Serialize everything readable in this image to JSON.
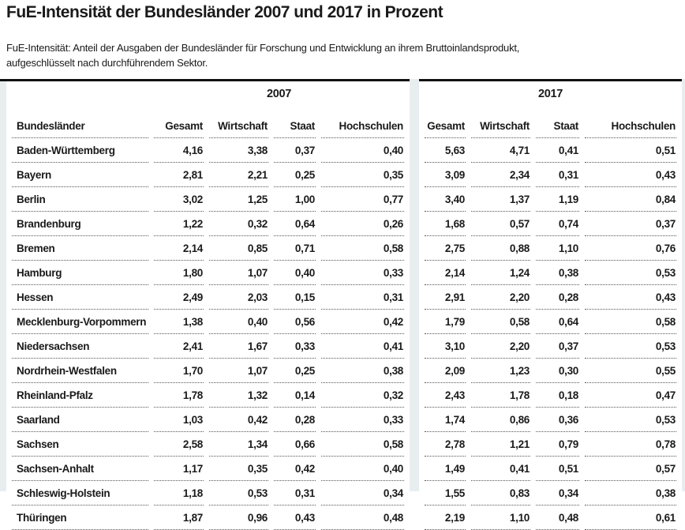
{
  "title": "FuE-Intensität der Bundesländer 2007 und 2017 in Prozent",
  "subtitle_lines": [
    "FuE-Intensität: Anteil der Ausgaben der Bundesländer für Forschung und Entwicklung an ihrem Bruttoinlandsprodukt,",
    "aufgeschlüsselt nach durchführendem Sektor."
  ],
  "table": {
    "row_header": "Bundesländer",
    "year_groups": [
      "2007",
      "2017"
    ],
    "columns": [
      "Gesamt",
      "Wirtschaft",
      "Staat",
      "Hochschulen"
    ],
    "rows": [
      {
        "name": "Baden-Württemberg",
        "y2007": [
          "4,16",
          "3,38",
          "0,37",
          "0,40"
        ],
        "y2017": [
          "5,63",
          "4,71",
          "0,41",
          "0,51"
        ]
      },
      {
        "name": "Bayern",
        "y2007": [
          "2,81",
          "2,21",
          "0,25",
          "0,35"
        ],
        "y2017": [
          "3,09",
          "2,34",
          "0,31",
          "0,43"
        ]
      },
      {
        "name": "Berlin",
        "y2007": [
          "3,02",
          "1,25",
          "1,00",
          "0,77"
        ],
        "y2017": [
          "3,40",
          "1,37",
          "1,19",
          "0,84"
        ]
      },
      {
        "name": "Brandenburg",
        "y2007": [
          "1,22",
          "0,32",
          "0,64",
          "0,26"
        ],
        "y2017": [
          "1,68",
          "0,57",
          "0,74",
          "0,37"
        ]
      },
      {
        "name": "Bremen",
        "y2007": [
          "2,14",
          "0,85",
          "0,71",
          "0,58"
        ],
        "y2017": [
          "2,75",
          "0,88",
          "1,10",
          "0,76"
        ]
      },
      {
        "name": "Hamburg",
        "y2007": [
          "1,80",
          "1,07",
          "0,40",
          "0,33"
        ],
        "y2017": [
          "2,14",
          "1,24",
          "0,38",
          "0,53"
        ]
      },
      {
        "name": "Hessen",
        "y2007": [
          "2,49",
          "2,03",
          "0,15",
          "0,31"
        ],
        "y2017": [
          "2,91",
          "2,20",
          "0,28",
          "0,43"
        ]
      },
      {
        "name": "Mecklenburg-Vorpommern",
        "y2007": [
          "1,38",
          "0,40",
          "0,56",
          "0,42"
        ],
        "y2017": [
          "1,79",
          "0,58",
          "0,64",
          "0,58"
        ]
      },
      {
        "name": "Niedersachsen",
        "y2007": [
          "2,41",
          "1,67",
          "0,33",
          "0,41"
        ],
        "y2017": [
          "3,10",
          "2,20",
          "0,37",
          "0,53"
        ]
      },
      {
        "name": "Nordrhein-Westfalen",
        "y2007": [
          "1,70",
          "1,07",
          "0,25",
          "0,38"
        ],
        "y2017": [
          "2,09",
          "1,23",
          "0,30",
          "0,55"
        ]
      },
      {
        "name": "Rheinland-Pfalz",
        "y2007": [
          "1,78",
          "1,32",
          "0,14",
          "0,32"
        ],
        "y2017": [
          "2,43",
          "1,78",
          "0,18",
          "0,47"
        ]
      },
      {
        "name": "Saarland",
        "y2007": [
          "1,03",
          "0,42",
          "0,28",
          "0,33"
        ],
        "y2017": [
          "1,74",
          "0,86",
          "0,36",
          "0,53"
        ]
      },
      {
        "name": "Sachsen",
        "y2007": [
          "2,58",
          "1,34",
          "0,66",
          "0,58"
        ],
        "y2017": [
          "2,78",
          "1,21",
          "0,79",
          "0,78"
        ]
      },
      {
        "name": "Sachsen-Anhalt",
        "y2007": [
          "1,17",
          "0,35",
          "0,42",
          "0,40"
        ],
        "y2017": [
          "1,49",
          "0,41",
          "0,51",
          "0,57"
        ]
      },
      {
        "name": "Schleswig-Holstein",
        "y2007": [
          "1,18",
          "0,53",
          "0,31",
          "0,34"
        ],
        "y2017": [
          "1,55",
          "0,83",
          "0,34",
          "0,38"
        ]
      },
      {
        "name": "Thüringen",
        "y2007": [
          "1,87",
          "0,96",
          "0,43",
          "0,48"
        ],
        "y2017": [
          "2,19",
          "1,10",
          "0,48",
          "0,61"
        ]
      }
    ]
  },
  "colors": {
    "rule": "#111111",
    "stripe": "#e8eef0",
    "dotted_line": "#555555",
    "text": "#1a1a1a"
  },
  "chart_data": {
    "type": "table",
    "title": "FuE-Intensität der Bundesländer 2007 und 2017 in Prozent",
    "note": "FuE-Intensität: Anteil der Ausgaben der Bundesländer für Forschung und Entwicklung an ihrem Bruttoinlandsprodukt, aufgeschlüsselt nach durchführendem Sektor.",
    "column_groups": [
      "2007",
      "2017"
    ],
    "columns": [
      "Bundesländer",
      "Gesamt 2007",
      "Wirtschaft 2007",
      "Staat 2007",
      "Hochschulen 2007",
      "Gesamt 2017",
      "Wirtschaft 2017",
      "Staat 2017",
      "Hochschulen 2017"
    ],
    "unit": "Prozent",
    "rows": [
      [
        "Baden-Württemberg",
        4.16,
        3.38,
        0.37,
        0.4,
        5.63,
        4.71,
        0.41,
        0.51
      ],
      [
        "Bayern",
        2.81,
        2.21,
        0.25,
        0.35,
        3.09,
        2.34,
        0.31,
        0.43
      ],
      [
        "Berlin",
        3.02,
        1.25,
        1.0,
        0.77,
        3.4,
        1.37,
        1.19,
        0.84
      ],
      [
        "Brandenburg",
        1.22,
        0.32,
        0.64,
        0.26,
        1.68,
        0.57,
        0.74,
        0.37
      ],
      [
        "Bremen",
        2.14,
        0.85,
        0.71,
        0.58,
        2.75,
        0.88,
        1.1,
        0.76
      ],
      [
        "Hamburg",
        1.8,
        1.07,
        0.4,
        0.33,
        2.14,
        1.24,
        0.38,
        0.53
      ],
      [
        "Hessen",
        2.49,
        2.03,
        0.15,
        0.31,
        2.91,
        2.2,
        0.28,
        0.43
      ],
      [
        "Mecklenburg-Vorpommern",
        1.38,
        0.4,
        0.56,
        0.42,
        1.79,
        0.58,
        0.64,
        0.58
      ],
      [
        "Niedersachsen",
        2.41,
        1.67,
        0.33,
        0.41,
        3.1,
        2.2,
        0.37,
        0.53
      ],
      [
        "Nordrhein-Westfalen",
        1.7,
        1.07,
        0.25,
        0.38,
        2.09,
        1.23,
        0.3,
        0.55
      ],
      [
        "Rheinland-Pfalz",
        1.78,
        1.32,
        0.14,
        0.32,
        2.43,
        1.78,
        0.18,
        0.47
      ],
      [
        "Saarland",
        1.03,
        0.42,
        0.28,
        0.33,
        1.74,
        0.86,
        0.36,
        0.53
      ],
      [
        "Sachsen",
        2.58,
        1.34,
        0.66,
        0.58,
        2.78,
        1.21,
        0.79,
        0.78
      ],
      [
        "Sachsen-Anhalt",
        1.17,
        0.35,
        0.42,
        0.4,
        1.49,
        0.41,
        0.51,
        0.57
      ],
      [
        "Schleswig-Holstein",
        1.18,
        0.53,
        0.31,
        0.34,
        1.55,
        0.83,
        0.34,
        0.38
      ],
      [
        "Thüringen",
        1.87,
        0.96,
        0.43,
        0.48,
        2.19,
        1.1,
        0.48,
        0.61
      ]
    ]
  }
}
